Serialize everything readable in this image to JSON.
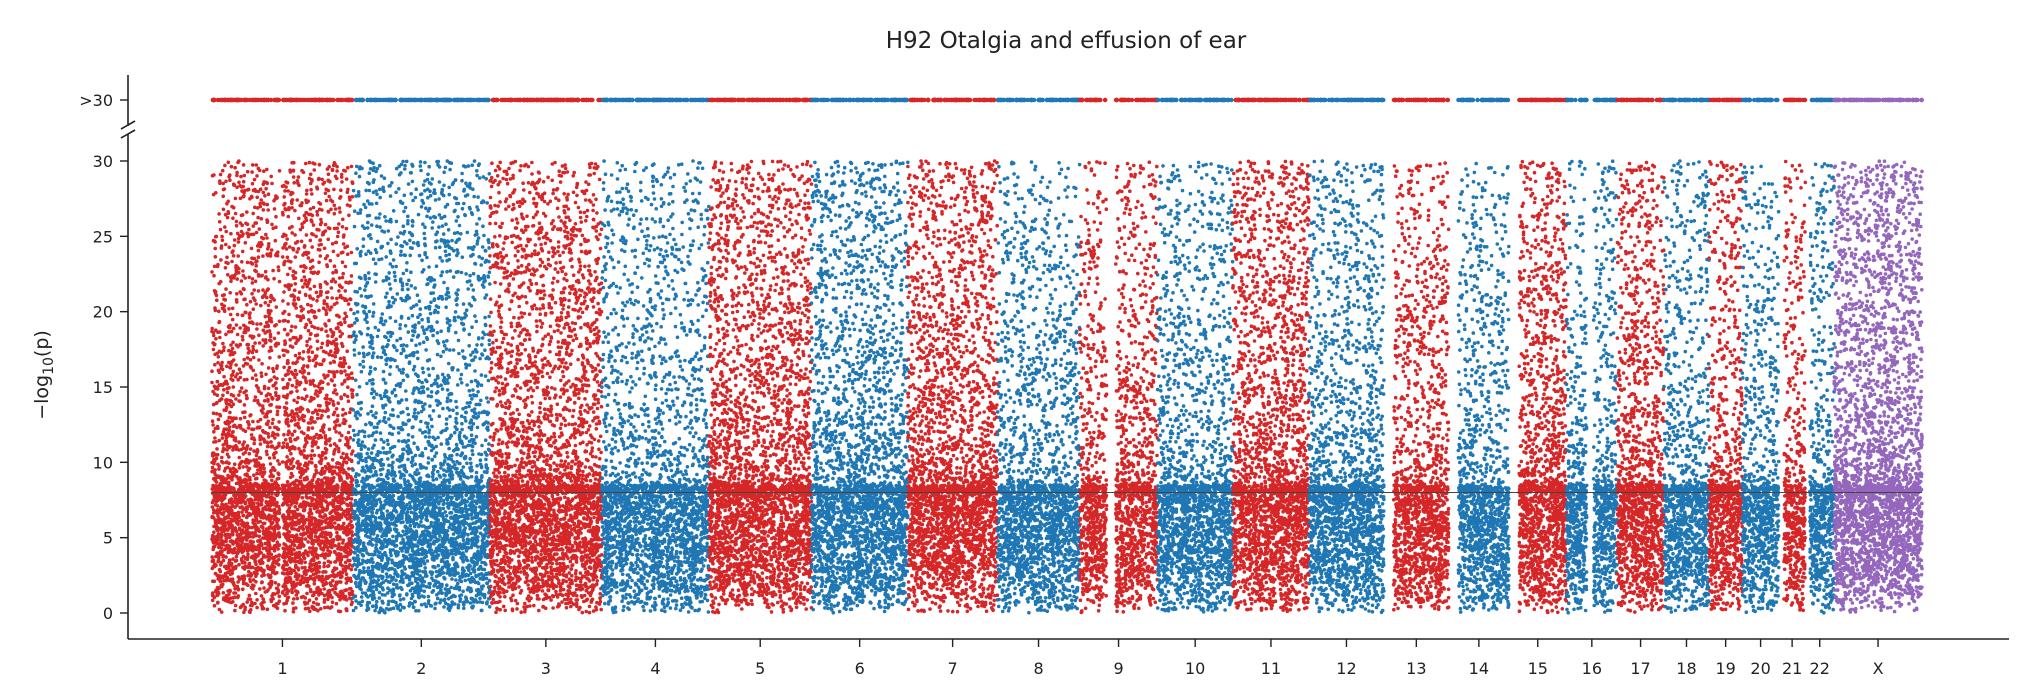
{
  "chart_data": {
    "type": "scatter",
    "title": "H92 Otalgia and effusion of ear",
    "xlabel": "",
    "ylabel": "−log10(p)",
    "ylabel_parts": {
      "prefix": "−log",
      "subscript": "10",
      "suffix": "(p)"
    },
    "ylim": [
      0,
      30
    ],
    "y_ticks": [
      "0",
      "5",
      "10",
      "15",
      "20",
      "25",
      "30"
    ],
    "capped_tick_label": ">30",
    "cap_threshold": 30,
    "significance_line": 8,
    "grid": false,
    "legend": "none",
    "colors": {
      "odd": "#d62728",
      "even": "#1f77b4",
      "X": "#9467bd"
    },
    "chromosomes": [
      {
        "name": "1",
        "bp_start": 0,
        "bp_end": 250,
        "color": "#d62728",
        "density": 1.0,
        "gaps": [
          [
            120,
            125
          ]
        ]
      },
      {
        "name": "2",
        "bp_start": 250,
        "bp_end": 493,
        "color": "#1f77b4",
        "density": 0.75,
        "gaps": []
      },
      {
        "name": "3",
        "bp_start": 493,
        "bp_end": 692,
        "color": "#d62728",
        "density": 1.0,
        "gaps": []
      },
      {
        "name": "4",
        "bp_start": 692,
        "bp_end": 882,
        "color": "#1f77b4",
        "density": 0.6,
        "gaps": []
      },
      {
        "name": "5",
        "bp_start": 882,
        "bp_end": 1064,
        "color": "#d62728",
        "density": 1.0,
        "gaps": []
      },
      {
        "name": "6",
        "bp_start": 1064,
        "bp_end": 1235,
        "color": "#1f77b4",
        "density": 0.85,
        "gaps": []
      },
      {
        "name": "7",
        "bp_start": 1235,
        "bp_end": 1394,
        "color": "#d62728",
        "density": 1.0,
        "gaps": []
      },
      {
        "name": "8",
        "bp_start": 1394,
        "bp_end": 1540,
        "color": "#1f77b4",
        "density": 0.6,
        "gaps": []
      },
      {
        "name": "9",
        "bp_start": 1540,
        "bp_end": 1678,
        "color": "#d62728",
        "density": 0.7,
        "gaps": [
          [
            1588,
            1604
          ]
        ]
      },
      {
        "name": "10",
        "bp_start": 1678,
        "bp_end": 1812,
        "color": "#1f77b4",
        "density": 0.65,
        "gaps": []
      },
      {
        "name": "11",
        "bp_start": 1812,
        "bp_end": 1947,
        "color": "#d62728",
        "density": 1.0,
        "gaps": []
      },
      {
        "name": "12",
        "bp_start": 1947,
        "bp_end": 2080,
        "color": "#1f77b4",
        "density": 0.7,
        "gaps": []
      },
      {
        "name": "13",
        "bp_start": 2080,
        "bp_end": 2195,
        "color": "#d62728",
        "density": 0.7,
        "gaps": [
          [
            2080,
            2097
          ]
        ]
      },
      {
        "name": "14",
        "bp_start": 2195,
        "bp_end": 2302,
        "color": "#1f77b4",
        "density": 0.6,
        "gaps": [
          [
            2195,
            2212
          ]
        ]
      },
      {
        "name": "15",
        "bp_start": 2302,
        "bp_end": 2404,
        "color": "#d62728",
        "density": 1.0,
        "gaps": [
          [
            2302,
            2320
          ]
        ]
      },
      {
        "name": "16",
        "bp_start": 2404,
        "bp_end": 2494,
        "color": "#1f77b4",
        "density": 0.6,
        "gaps": [
          [
            2440,
            2452
          ]
        ]
      },
      {
        "name": "17",
        "bp_start": 2494,
        "bp_end": 2577,
        "color": "#d62728",
        "density": 0.85,
        "gaps": []
      },
      {
        "name": "18",
        "bp_start": 2577,
        "bp_end": 2657,
        "color": "#1f77b4",
        "density": 0.6,
        "gaps": []
      },
      {
        "name": "19",
        "bp_start": 2657,
        "bp_end": 2716,
        "color": "#d62728",
        "density": 0.7,
        "gaps": []
      },
      {
        "name": "20",
        "bp_start": 2716,
        "bp_end": 2781,
        "color": "#1f77b4",
        "density": 0.6,
        "gaps": []
      },
      {
        "name": "21",
        "bp_start": 2781,
        "bp_end": 2828,
        "color": "#d62728",
        "density": 0.6,
        "gaps": [
          [
            2781,
            2790
          ]
        ]
      },
      {
        "name": "22",
        "bp_start": 2828,
        "bp_end": 2879,
        "color": "#1f77b4",
        "density": 0.6,
        "gaps": [
          [
            2828,
            2836
          ]
        ]
      },
      {
        "name": "X",
        "bp_start": 2879,
        "bp_end": 3035,
        "color": "#9467bd",
        "density": 1.2,
        "gaps": []
      }
    ]
  }
}
